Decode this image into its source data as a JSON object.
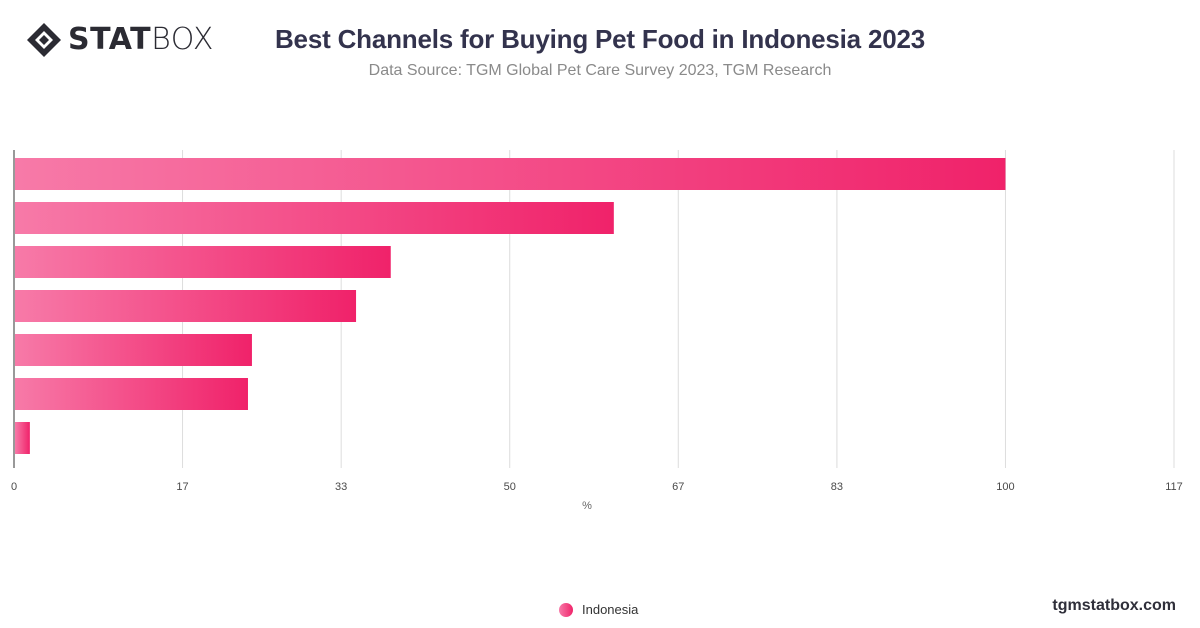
{
  "header": {
    "logo_bold": "STAT",
    "logo_light": "BOX",
    "title": "Best Channels for Buying Pet Food in Indonesia 2023",
    "subtitle": "Data Source: TGM Global Pet Care Survey 2023, TGM Research"
  },
  "footer": {
    "url": "tgmstatbox.com"
  },
  "colors": {
    "bar_start": "#f77aa8",
    "bar_end": "#f0226a",
    "grid": "#dcdcdc",
    "axis": "#333333"
  },
  "chart_data": {
    "type": "bar",
    "orientation": "horizontal",
    "title": "Best Channels for Buying Pet Food in Indonesia 2023",
    "subtitle": "Data Source: TGM Global Pet Care Survey 2023, TGM Research",
    "categories": [
      "",
      "",
      "",
      "",
      "",
      "",
      ""
    ],
    "series": [
      {
        "name": "Indonesia",
        "values": [
          100,
          60.5,
          38,
          34.5,
          24,
          23.6,
          1.6
        ]
      }
    ],
    "xlabel": "%",
    "xlim": [
      0,
      117
    ],
    "xticks": [
      "0",
      "17",
      "33",
      "50",
      "67",
      "83",
      "100",
      "117"
    ],
    "grid": true,
    "legend": "bottom-center"
  }
}
